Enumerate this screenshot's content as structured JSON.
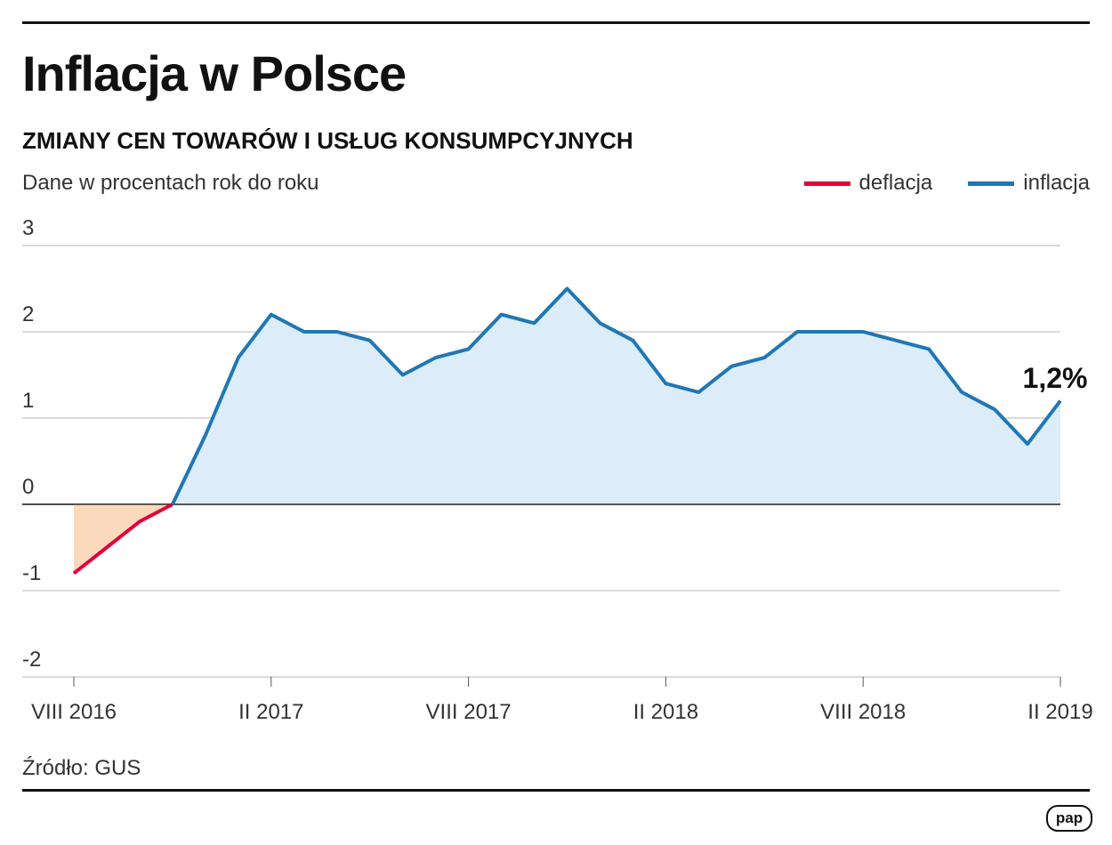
{
  "header": {
    "title": "Inflacja w Polsce",
    "subtitle": "ZMIANY CEN TOWARÓW I USŁUG KONSUMPCYJNYCH",
    "description": "Dane w procentach rok do roku"
  },
  "legend": [
    {
      "label": "deflacja",
      "color": "#e4003a"
    },
    {
      "label": "inflacja",
      "color": "#1f77b4"
    }
  ],
  "source": "Źródło: GUS",
  "logo": "pap",
  "chart_data": {
    "type": "line",
    "title": "Inflacja w Polsce",
    "ylabel": "Dane w procentach rok do roku",
    "ylim": [
      -2,
      3
    ],
    "yticks": [
      "3",
      "2",
      "1",
      "0",
      "-1",
      "-2"
    ],
    "ytick_values": [
      3,
      2,
      1,
      0,
      -1,
      -2
    ],
    "xticks": [
      "VIII 2016",
      "II 2017",
      "VIII 2017",
      "II 2018",
      "VIII 2018",
      "II 2019"
    ],
    "xtick_index": [
      0,
      6,
      12,
      18,
      24,
      30
    ],
    "months": [
      "VIII 2016",
      "IX 2016",
      "X 2016",
      "XI 2016",
      "XII 2016",
      "I 2017",
      "II 2017",
      "III 2017",
      "IV 2017",
      "V 2017",
      "VI 2017",
      "VII 2017",
      "VIII 2017",
      "IX 2017",
      "X 2017",
      "XI 2017",
      "XII 2017",
      "I 2018",
      "II 2018",
      "III 2018",
      "IV 2018",
      "V 2018",
      "VI 2018",
      "VII 2018",
      "VIII 2018",
      "IX 2018",
      "X 2018",
      "XI 2018",
      "XII 2018",
      "I 2019",
      "II 2019"
    ],
    "values": [
      -0.8,
      -0.5,
      -0.2,
      0.0,
      0.8,
      1.7,
      2.2,
      2.0,
      2.0,
      1.9,
      1.5,
      1.7,
      1.8,
      2.2,
      2.1,
      2.5,
      2.1,
      1.9,
      1.4,
      1.3,
      1.6,
      1.7,
      2.0,
      2.0,
      2.0,
      1.9,
      1.8,
      1.3,
      1.1,
      0.7,
      1.2
    ],
    "annotation": "1,2%",
    "colors": {
      "deflation_line": "#e4003a",
      "deflation_fill": "#fbd9bd",
      "inflation_line": "#1f77b4",
      "inflation_fill": "#dcecf8",
      "grid": "#b5b5b5"
    }
  }
}
